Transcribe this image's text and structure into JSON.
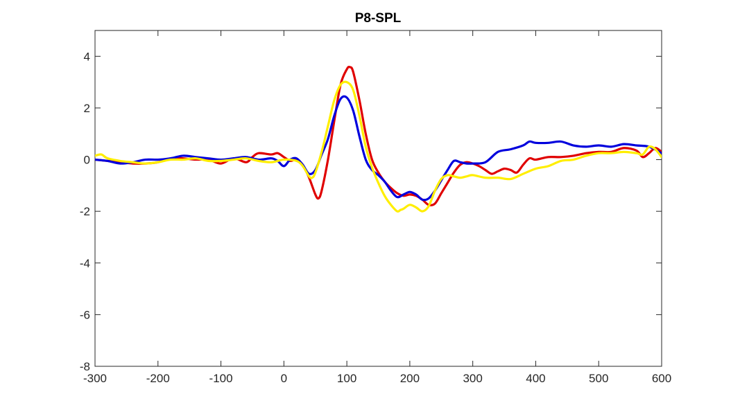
{
  "chart_data": {
    "type": "line",
    "title": "P8-SPL",
    "xlabel": "",
    "ylabel": "",
    "xlim": [
      -300,
      600
    ],
    "ylim": [
      -8,
      5
    ],
    "xticks": [
      -300,
      -200,
      -100,
      0,
      100,
      200,
      300,
      400,
      500,
      600
    ],
    "yticks": [
      -8,
      -6,
      -4,
      -2,
      0,
      2,
      4
    ],
    "grid": false,
    "legend": "none",
    "series": [
      {
        "color": "#e00000",
        "x": [
          -300,
          -280,
          -260,
          -240,
          -220,
          -200,
          -180,
          -160,
          -140,
          -120,
          -100,
          -80,
          -60,
          -50,
          -40,
          -20,
          -10,
          0,
          10,
          20,
          30,
          40,
          50,
          55,
          60,
          70,
          80,
          90,
          100,
          105,
          110,
          120,
          130,
          140,
          150,
          160,
          170,
          180,
          190,
          200,
          210,
          220,
          230,
          240,
          250,
          260,
          270,
          280,
          290,
          300,
          310,
          320,
          330,
          340,
          350,
          360,
          370,
          380,
          390,
          400,
          420,
          440,
          460,
          480,
          500,
          520,
          540,
          560,
          570,
          580,
          590,
          600
        ],
        "y": [
          0.0,
          -0.05,
          -0.1,
          -0.15,
          -0.15,
          -0.1,
          0.05,
          0.05,
          0.0,
          0.0,
          -0.15,
          0.05,
          -0.1,
          0.1,
          0.25,
          0.2,
          0.25,
          0.1,
          -0.05,
          0.0,
          -0.2,
          -0.7,
          -1.35,
          -1.5,
          -1.2,
          0.0,
          1.5,
          2.9,
          3.5,
          3.58,
          3.4,
          2.3,
          1.0,
          0.0,
          -0.5,
          -0.85,
          -1.1,
          -1.3,
          -1.4,
          -1.35,
          -1.4,
          -1.55,
          -1.75,
          -1.7,
          -1.3,
          -0.9,
          -0.5,
          -0.2,
          -0.1,
          -0.15,
          -0.25,
          -0.4,
          -0.55,
          -0.45,
          -0.35,
          -0.4,
          -0.5,
          -0.2,
          0.05,
          0.0,
          0.1,
          0.1,
          0.15,
          0.25,
          0.3,
          0.3,
          0.45,
          0.35,
          0.1,
          0.25,
          0.45,
          0.3
        ]
      },
      {
        "color": "#0000dd",
        "x": [
          -300,
          -280,
          -260,
          -240,
          -220,
          -200,
          -180,
          -160,
          -140,
          -120,
          -100,
          -80,
          -60,
          -40,
          -20,
          -10,
          0,
          10,
          20,
          30,
          40,
          50,
          60,
          70,
          80,
          90,
          100,
          110,
          120,
          130,
          140,
          150,
          160,
          170,
          180,
          190,
          200,
          210,
          220,
          230,
          240,
          250,
          260,
          270,
          280,
          290,
          300,
          320,
          340,
          360,
          380,
          390,
          400,
          420,
          440,
          460,
          480,
          500,
          520,
          540,
          560,
          580,
          600
        ],
        "y": [
          0.0,
          -0.05,
          -0.15,
          -0.1,
          0.0,
          0.0,
          0.05,
          0.15,
          0.1,
          0.05,
          0.0,
          0.05,
          0.1,
          0.0,
          0.05,
          -0.05,
          -0.25,
          0.0,
          0.05,
          -0.2,
          -0.55,
          -0.4,
          0.2,
          0.8,
          1.7,
          2.35,
          2.4,
          1.9,
          0.9,
          0.0,
          -0.4,
          -0.6,
          -0.85,
          -1.2,
          -1.45,
          -1.35,
          -1.25,
          -1.35,
          -1.55,
          -1.5,
          -1.2,
          -0.8,
          -0.4,
          -0.05,
          -0.1,
          -0.15,
          -0.15,
          -0.1,
          0.3,
          0.4,
          0.55,
          0.7,
          0.65,
          0.65,
          0.7,
          0.55,
          0.5,
          0.55,
          0.5,
          0.6,
          0.55,
          0.5,
          0.25
        ]
      },
      {
        "color": "#ffee00",
        "x": [
          -300,
          -290,
          -280,
          -260,
          -240,
          -220,
          -200,
          -180,
          -160,
          -140,
          -120,
          -100,
          -80,
          -60,
          -40,
          -20,
          0,
          20,
          30,
          40,
          45,
          50,
          60,
          70,
          80,
          90,
          100,
          110,
          120,
          130,
          140,
          150,
          160,
          170,
          180,
          185,
          190,
          200,
          210,
          220,
          230,
          240,
          250,
          260,
          270,
          280,
          290,
          300,
          320,
          340,
          360,
          380,
          400,
          420,
          440,
          460,
          480,
          500,
          520,
          540,
          560,
          570,
          580,
          590,
          600
        ],
        "y": [
          0.15,
          0.2,
          0.05,
          -0.05,
          -0.1,
          -0.15,
          -0.1,
          0.0,
          0.0,
          0.05,
          -0.05,
          -0.05,
          0.0,
          0.05,
          -0.05,
          -0.1,
          0.0,
          -0.05,
          -0.25,
          -0.65,
          -0.7,
          -0.5,
          0.3,
          1.3,
          2.3,
          2.9,
          3.0,
          2.7,
          1.7,
          0.5,
          -0.3,
          -0.9,
          -1.4,
          -1.75,
          -2.0,
          -1.95,
          -1.9,
          -1.75,
          -1.85,
          -2.0,
          -1.8,
          -1.2,
          -0.75,
          -0.6,
          -0.65,
          -0.7,
          -0.65,
          -0.6,
          -0.7,
          -0.7,
          -0.75,
          -0.55,
          -0.35,
          -0.25,
          -0.05,
          0.0,
          0.15,
          0.25,
          0.25,
          0.3,
          0.25,
          0.2,
          0.5,
          0.4,
          0.1
        ]
      }
    ]
  }
}
